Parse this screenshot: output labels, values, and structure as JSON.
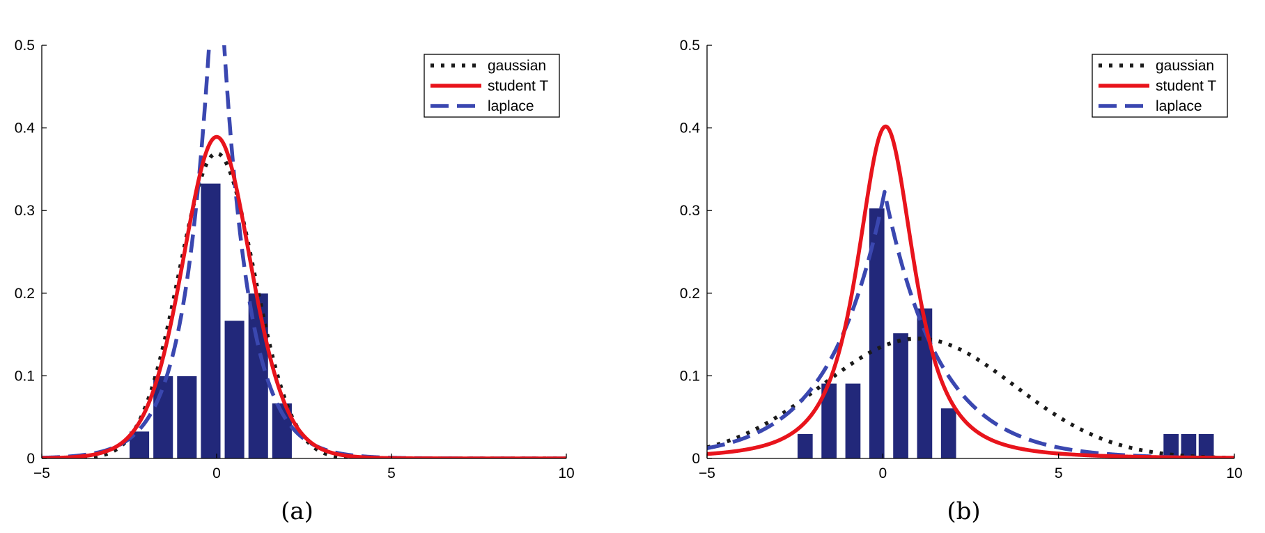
{
  "chart_data": [
    {
      "type": "bar",
      "caption": "(a)",
      "xlim": [
        -5,
        10
      ],
      "ylim": [
        0,
        0.5
      ],
      "xticks": [
        -5,
        0,
        5,
        10
      ],
      "yticks": [
        0,
        0.1,
        0.2,
        0.3,
        0.4,
        0.5
      ],
      "xtick_labels": [
        "−5",
        "0",
        "5",
        "10"
      ],
      "ytick_labels": [
        "0",
        "0.1",
        "0.2",
        "0.3",
        "0.4",
        "0.5"
      ],
      "grid": false,
      "legend_position": "top-right",
      "bar_color": "#22287a",
      "histogram": {
        "centers": [
          -2.21,
          -1.53,
          -0.85,
          -0.17,
          0.51,
          1.19,
          1.87
        ],
        "values": [
          0.033,
          0.1,
          0.1,
          0.333,
          0.167,
          0.2,
          0.067
        ],
        "width": 0.58
      },
      "series": [
        {
          "name": "gaussian",
          "dist": "gaussian",
          "mu": 0,
          "sigma": 1.08,
          "color": "#1a1a1a",
          "style": "dotted"
        },
        {
          "name": "student T",
          "dist": "student",
          "mu": 0,
          "sigma": 1.0,
          "nu": 10,
          "color": "#e8141c",
          "style": "solid"
        },
        {
          "name": "laplace",
          "dist": "laplace",
          "mu": 0,
          "b": 0.75,
          "color": "#3a47b0",
          "style": "dashed"
        }
      ]
    },
    {
      "type": "bar",
      "caption": "(b)",
      "xlim": [
        -5,
        10
      ],
      "ylim": [
        0,
        0.5
      ],
      "xticks": [
        -5,
        0,
        5,
        10
      ],
      "yticks": [
        0,
        0.1,
        0.2,
        0.3,
        0.4,
        0.5
      ],
      "xtick_labels": [
        "−5",
        "0",
        "5",
        "10"
      ],
      "ytick_labels": [
        "0",
        "0.1",
        "0.2",
        "0.3",
        "0.4",
        "0.5"
      ],
      "grid": false,
      "legend_position": "top-right",
      "bar_color": "#22287a",
      "histogram": {
        "centers": [
          -2.21,
          -1.53,
          -0.85,
          -0.17,
          0.51,
          1.19,
          1.87,
          8.2,
          8.7,
          9.2
        ],
        "values": [
          0.03,
          0.091,
          0.091,
          0.303,
          0.152,
          0.182,
          0.061,
          0.03,
          0.03,
          0.03
        ],
        "width": 0.45
      },
      "series": [
        {
          "name": "gaussian",
          "dist": "gaussian",
          "mu": 1.0,
          "sigma": 2.75,
          "color": "#1a1a1a",
          "style": "dotted"
        },
        {
          "name": "student T",
          "dist": "student",
          "mu": 0.08,
          "sigma": 0.88,
          "nu": 2,
          "color": "#e8141c",
          "style": "solid"
        },
        {
          "name": "laplace",
          "dist": "laplace",
          "mu": 0.05,
          "b": 1.55,
          "color": "#3a47b0",
          "style": "dashed"
        }
      ]
    }
  ]
}
